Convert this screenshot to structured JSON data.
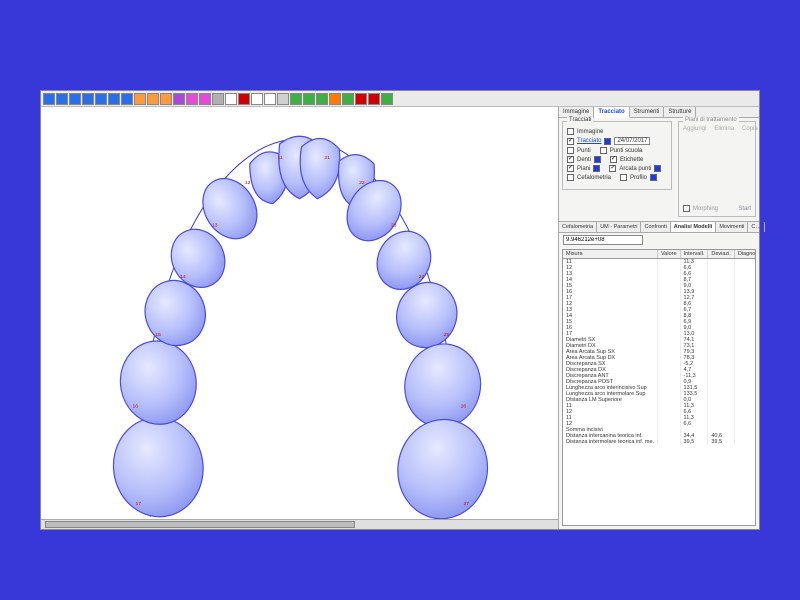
{
  "toolbar": {
    "colors": [
      "#2a6fea",
      "#2a6fea",
      "#2a6fea",
      "#2a6fea",
      "#2a6fea",
      "#2a6fea",
      "#2a6fea",
      "#ff9a3c",
      "#ff9a3c",
      "#ff9a3c",
      "#a84ad8",
      "#e84ad8",
      "#e84ad8",
      "#b0b0b0",
      "#ffffff",
      "#d00000",
      "#ffffff",
      "#ffffff",
      "#d0d0d0",
      "#3cb043",
      "#3cb043",
      "#3cb043",
      "#ff7b00",
      "#3cb043",
      "#d00000",
      "#d00000",
      "#3cb043"
    ]
  },
  "sideTabs": {
    "items": [
      "Immagine",
      "Tracciato",
      "Strumenti",
      "Strutture"
    ],
    "activeIndex": 1
  },
  "tracciati": {
    "group_label": "Tracciati",
    "rows": [
      {
        "checked": false,
        "label": "Immagine"
      },
      {
        "checked": true,
        "label_link": "Tracciato",
        "color": "#1a3be6",
        "date": "24/07/2017"
      },
      {
        "checked": false,
        "label": "Punti",
        "checked2": false,
        "label2": "Punti scuola"
      },
      {
        "checked": true,
        "label": "Denti",
        "color": "#1a3be6",
        "checked2": true,
        "label2": "Etichette"
      },
      {
        "checked": true,
        "label": "Piani",
        "color": "#1a3be6",
        "checked2": true,
        "label2": "Arcata punti",
        "color2": "#1a3be6"
      },
      {
        "checked": false,
        "label": "Cefalometria",
        "checked2": false,
        "label2": "Profilo",
        "color2": "#1a3be6"
      }
    ]
  },
  "trattamento": {
    "group_label": "Piani di trattamento",
    "buttons": [
      "Aggiungi",
      "Elimina",
      "Copia"
    ],
    "footer_cb": "Morphing",
    "footer_link": "Start"
  },
  "midTabs": {
    "items": [
      "Cefalometria",
      "UM - Parametri",
      "Confronti",
      "Analisi Modelli",
      "Movimenti",
      "C…"
    ],
    "activeIndex": 3
  },
  "sub_input_value": "9.946212e+08",
  "grid": {
    "columns": [
      "Misura",
      "Valore",
      "Intervall.",
      "Deviazi.",
      "Diagnosi"
    ],
    "rows": [
      [
        "11",
        "",
        "11,3",
        "",
        ""
      ],
      [
        "12",
        "",
        "6,6",
        "",
        ""
      ],
      [
        "13",
        "",
        "6,6",
        "",
        ""
      ],
      [
        "14",
        "",
        "8,7",
        "",
        ""
      ],
      [
        "15",
        "",
        "9,0",
        "",
        ""
      ],
      [
        "16",
        "",
        "13,9",
        "",
        ""
      ],
      [
        "17",
        "",
        "12,7",
        "",
        ""
      ],
      [
        "12",
        "",
        "8,6",
        "",
        ""
      ],
      [
        "13",
        "",
        "6,7",
        "",
        ""
      ],
      [
        "14",
        "",
        "8,8",
        "",
        ""
      ],
      [
        "15",
        "",
        "6,9",
        "",
        ""
      ],
      [
        "16",
        "",
        "9,0",
        "",
        ""
      ],
      [
        "17",
        "",
        "13,0",
        "",
        ""
      ],
      [
        "Diametri SX",
        "",
        "74,1",
        "",
        ""
      ],
      [
        "Diametri DX",
        "",
        "73,1",
        "",
        ""
      ],
      [
        "Area Arcata Sup SX",
        "",
        "79,3",
        "",
        ""
      ],
      [
        "Area Arcata Sup DX",
        "",
        "78,3",
        "",
        ""
      ],
      [
        "Discrepanza SX",
        "",
        "-5,2",
        "",
        ""
      ],
      [
        "Discrepanza DX",
        "",
        "4,7",
        "",
        ""
      ],
      [
        "Discrepanza ANT",
        "",
        "-11,3",
        "",
        ""
      ],
      [
        "Discrepanza POST",
        "",
        "0,9",
        "",
        ""
      ],
      [
        "Lunghezza arco interincisivo Sup",
        "",
        "131,5",
        "",
        ""
      ],
      [
        "Lunghezza arco intermolare Sup",
        "",
        "133,5",
        "",
        ""
      ],
      [
        "",
        "",
        "",
        "",
        ""
      ],
      [
        "Distanza LM Superiore",
        "",
        "0,0",
        "",
        ""
      ],
      [
        "11",
        "",
        "11,3",
        "",
        ""
      ],
      [
        "12",
        "",
        "6,6",
        "",
        ""
      ],
      [
        "11",
        "",
        "11,3",
        "",
        ""
      ],
      [
        "12",
        "",
        "6,6",
        "",
        ""
      ],
      [
        "Somma incisivi",
        "",
        "",
        "",
        ""
      ],
      [
        "Distanza intercanina teorica inf.",
        "",
        "34,4",
        "40,6",
        ""
      ],
      [
        "Distanza intermolare teorica inf. me.",
        "",
        "39,5",
        "39,5",
        ""
      ]
    ]
  },
  "teeth_labels": [
    "17",
    "16",
    "15",
    "14",
    "13",
    "12",
    "11",
    "21",
    "22",
    "23",
    "24",
    "25",
    "26",
    "27"
  ]
}
